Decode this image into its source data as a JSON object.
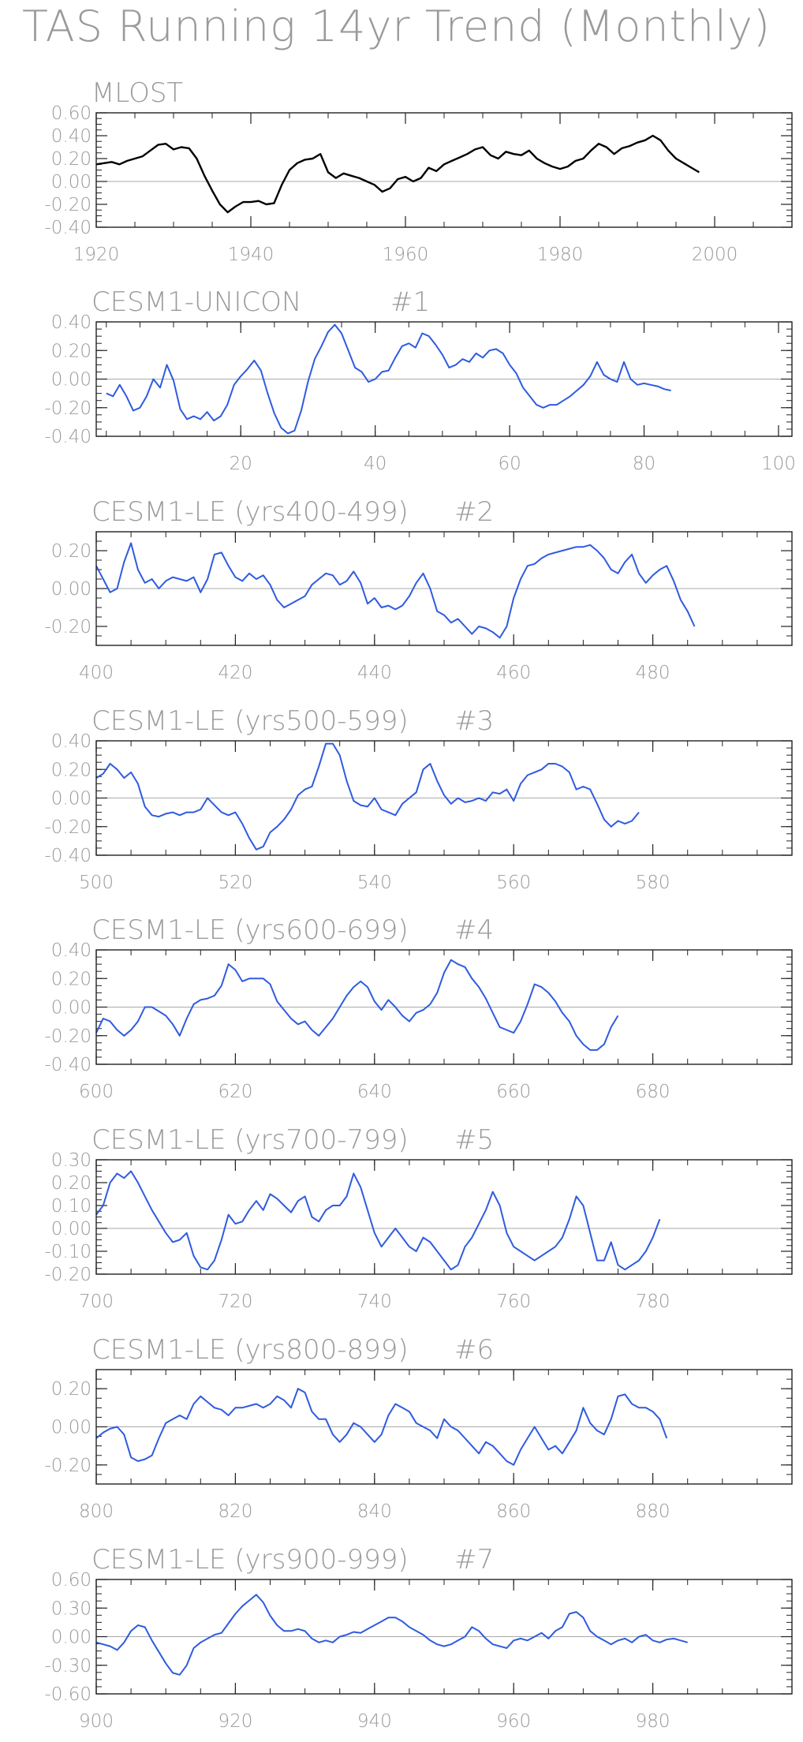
{
  "page": {
    "title": "TAS Running 14yr Trend (Monthly)"
  },
  "colors": {
    "observed_line": "#000000",
    "model_line": "#2f5be0",
    "frame": "#222222",
    "zero_line": "#aaaaaa",
    "text": "#9a9a9a"
  },
  "chart_data": [
    {
      "type": "line",
      "title": "MLOST",
      "label_run": "",
      "xlim": [
        1920,
        2010
      ],
      "ylim": [
        -0.4,
        0.6
      ],
      "yticks": [
        0.6,
        0.4,
        0.2,
        0.0,
        -0.2,
        -0.4
      ],
      "yticklabels": [
        "0.60",
        "0.40",
        "0.20",
        "0.00",
        "-0.20",
        "-0.40"
      ],
      "xticks": [
        1920,
        1940,
        1960,
        1980,
        2000
      ],
      "xticklabels": [
        "1920",
        "1940",
        "1960",
        "1980",
        "2000"
      ],
      "color": "observed",
      "series": [
        {
          "x0": 1920,
          "dx": 1,
          "values": [
            0.15,
            0.16,
            0.17,
            0.15,
            0.18,
            0.2,
            0.22,
            0.27,
            0.32,
            0.33,
            0.28,
            0.3,
            0.29,
            0.2,
            0.05,
            -0.08,
            -0.2,
            -0.27,
            -0.22,
            -0.18,
            -0.18,
            -0.17,
            -0.2,
            -0.19,
            -0.03,
            0.1,
            0.16,
            0.19,
            0.2,
            0.24,
            0.08,
            0.03,
            0.07,
            0.05,
            0.03,
            0.0,
            -0.03,
            -0.09,
            -0.06,
            0.02,
            0.04,
            0.0,
            0.03,
            0.12,
            0.09,
            0.15,
            0.18,
            0.21,
            0.24,
            0.28,
            0.3,
            0.23,
            0.2,
            0.26,
            0.24,
            0.23,
            0.27,
            0.2,
            0.16,
            0.13,
            0.11,
            0.13,
            0.18,
            0.2,
            0.27,
            0.33,
            0.3,
            0.24,
            0.29,
            0.31,
            0.34,
            0.36,
            0.4,
            0.36,
            0.27,
            0.2,
            0.16,
            0.12,
            0.08
          ]
        }
      ]
    },
    {
      "type": "line",
      "title": "CESM1-UNICON",
      "label_run": "#1",
      "xlim": [
        0,
        102
      ],
      "ylim": [
        -0.4,
        0.4
      ],
      "yticks": [
        0.4,
        0.2,
        0.0,
        -0.2,
        -0.4
      ],
      "yticklabels": [
        "0.40",
        "0.20",
        "0.00",
        "-0.20",
        "-0.40"
      ],
      "xticks": [
        20,
        40,
        60,
        80,
        100
      ],
      "xticklabels": [
        "20",
        "40",
        "60",
        "80",
        "100"
      ],
      "color": "model",
      "series": [
        {
          "x0": 0,
          "dx": 1,
          "values": [
            -0.1,
            -0.12,
            -0.04,
            -0.12,
            -0.22,
            -0.2,
            -0.12,
            0.0,
            -0.06,
            0.1,
            -0.01,
            -0.21,
            -0.28,
            -0.26,
            -0.28,
            -0.23,
            -0.29,
            -0.26,
            -0.18,
            -0.04,
            0.02,
            0.07,
            0.13,
            0.06,
            -0.1,
            -0.24,
            -0.34,
            -0.38,
            -0.36,
            -0.22,
            -0.02,
            0.14,
            0.23,
            0.33,
            0.38,
            0.32,
            0.2,
            0.08,
            0.05,
            -0.02,
            0.0,
            0.05,
            0.06,
            0.15,
            0.23,
            0.25,
            0.22,
            0.32,
            0.3,
            0.24,
            0.17,
            0.08,
            0.1,
            0.14,
            0.12,
            0.18,
            0.15,
            0.2,
            0.21,
            0.18,
            0.1,
            0.04,
            -0.06,
            -0.12,
            -0.18,
            -0.2,
            -0.18,
            -0.18,
            -0.15,
            -0.12,
            -0.08,
            -0.04,
            0.02,
            0.12,
            0.03,
            0.0,
            -0.02,
            0.12,
            0.0,
            -0.04,
            -0.03,
            -0.04,
            -0.05,
            -0.07,
            -0.08
          ]
        }
      ]
    },
    {
      "type": "line",
      "title": "CESM1-LE (yrs400-499)",
      "label_run": "#2",
      "xlim": [
        400,
        500
      ],
      "ylim": [
        -0.3,
        0.3
      ],
      "yticks": [
        0.2,
        0.0,
        -0.2
      ],
      "yticklabels": [
        "0.20",
        "0.00",
        "-0.20"
      ],
      "xticks": [
        400,
        420,
        440,
        460,
        480
      ],
      "xticklabels": [
        "400",
        "420",
        "440",
        "460",
        "480"
      ],
      "color": "model",
      "series": [
        {
          "x0": 400,
          "dx": 1,
          "values": [
            0.12,
            0.05,
            -0.02,
            0.0,
            0.14,
            0.24,
            0.1,
            0.03,
            0.05,
            0.0,
            0.04,
            0.06,
            0.05,
            0.04,
            0.06,
            -0.02,
            0.05,
            0.18,
            0.19,
            0.12,
            0.06,
            0.04,
            0.08,
            0.05,
            0.07,
            0.02,
            -0.06,
            -0.1,
            -0.08,
            -0.06,
            -0.04,
            0.02,
            0.05,
            0.08,
            0.07,
            0.02,
            0.04,
            0.09,
            0.03,
            -0.08,
            -0.05,
            -0.1,
            -0.09,
            -0.11,
            -0.09,
            -0.04,
            0.03,
            0.08,
            0.0,
            -0.12,
            -0.14,
            -0.18,
            -0.16,
            -0.2,
            -0.24,
            -0.2,
            -0.21,
            -0.23,
            -0.26,
            -0.2,
            -0.05,
            0.05,
            0.12,
            0.13,
            0.16,
            0.18,
            0.19,
            0.2,
            0.21,
            0.22,
            0.22,
            0.23,
            0.2,
            0.16,
            0.1,
            0.08,
            0.14,
            0.18,
            0.08,
            0.03,
            0.07,
            0.1,
            0.12,
            0.04,
            -0.06,
            -0.12,
            -0.2
          ]
        }
      ]
    },
    {
      "type": "line",
      "title": "CESM1-LE (yrs500-599)",
      "label_run": "#3",
      "xlim": [
        500,
        600
      ],
      "ylim": [
        -0.4,
        0.4
      ],
      "yticks": [
        0.4,
        0.2,
        0.0,
        -0.2,
        -0.4
      ],
      "yticklabels": [
        "0.40",
        "0.20",
        "0.00",
        "-0.20",
        "-0.40"
      ],
      "xticks": [
        500,
        520,
        540,
        560,
        580
      ],
      "xticklabels": [
        "500",
        "520",
        "540",
        "560",
        "580"
      ],
      "color": "model",
      "series": [
        {
          "x0": 500,
          "dx": 1,
          "values": [
            0.14,
            0.17,
            0.24,
            0.2,
            0.14,
            0.18,
            0.1,
            -0.06,
            -0.12,
            -0.13,
            -0.11,
            -0.1,
            -0.12,
            -0.1,
            -0.1,
            -0.08,
            0.0,
            -0.05,
            -0.1,
            -0.12,
            -0.1,
            -0.18,
            -0.28,
            -0.36,
            -0.34,
            -0.24,
            -0.2,
            -0.15,
            -0.08,
            0.02,
            0.06,
            0.08,
            0.22,
            0.38,
            0.38,
            0.3,
            0.12,
            -0.02,
            -0.05,
            -0.06,
            0.0,
            -0.08,
            -0.1,
            -0.12,
            -0.04,
            0.0,
            0.04,
            0.2,
            0.24,
            0.12,
            0.02,
            -0.04,
            0.0,
            -0.03,
            -0.02,
            0.0,
            -0.02,
            0.04,
            0.03,
            0.06,
            -0.02,
            0.1,
            0.16,
            0.18,
            0.2,
            0.24,
            0.24,
            0.22,
            0.18,
            0.06,
            0.08,
            0.06,
            -0.04,
            -0.15,
            -0.2,
            -0.16,
            -0.18,
            -0.16,
            -0.1
          ]
        }
      ]
    },
    {
      "type": "line",
      "title": "CESM1-LE (yrs600-699)",
      "label_run": "#4",
      "xlim": [
        600,
        700
      ],
      "ylim": [
        -0.4,
        0.4
      ],
      "yticks": [
        0.4,
        0.2,
        0.0,
        -0.2,
        -0.4
      ],
      "yticklabels": [
        "0.40",
        "0.20",
        "0.00",
        "-0.20",
        "-0.40"
      ],
      "xticks": [
        600,
        620,
        640,
        660,
        680
      ],
      "xticklabels": [
        "600",
        "620",
        "640",
        "660",
        "680"
      ],
      "color": "model",
      "series": [
        {
          "x0": 600,
          "dx": 1,
          "values": [
            -0.18,
            -0.08,
            -0.1,
            -0.16,
            -0.2,
            -0.16,
            -0.1,
            0.0,
            0.0,
            -0.03,
            -0.06,
            -0.12,
            -0.2,
            -0.08,
            0.02,
            0.05,
            0.06,
            0.08,
            0.15,
            0.3,
            0.26,
            0.18,
            0.2,
            0.2,
            0.2,
            0.16,
            0.04,
            -0.02,
            -0.08,
            -0.12,
            -0.1,
            -0.16,
            -0.2,
            -0.14,
            -0.08,
            0.0,
            0.08,
            0.14,
            0.18,
            0.14,
            0.04,
            -0.02,
            0.05,
            0.0,
            -0.06,
            -0.1,
            -0.04,
            -0.02,
            0.02,
            0.1,
            0.24,
            0.33,
            0.3,
            0.28,
            0.2,
            0.14,
            0.06,
            -0.04,
            -0.14,
            -0.16,
            -0.18,
            -0.1,
            0.02,
            0.16,
            0.14,
            0.1,
            0.04,
            -0.04,
            -0.1,
            -0.2,
            -0.26,
            -0.3,
            -0.3,
            -0.26,
            -0.14,
            -0.06
          ]
        }
      ]
    },
    {
      "type": "line",
      "title": "CESM1-LE (yrs700-799)",
      "label_run": "#5",
      "xlim": [
        700,
        800
      ],
      "ylim": [
        -0.2,
        0.3
      ],
      "yticks": [
        0.3,
        0.2,
        0.1,
        0.0,
        -0.1,
        -0.2
      ],
      "yticklabels": [
        "0.30",
        "0.20",
        "0.10",
        "0.00",
        "-0.10",
        "-0.20"
      ],
      "xticks": [
        700,
        720,
        740,
        760,
        780
      ],
      "xticklabels": [
        "700",
        "720",
        "740",
        "760",
        "780"
      ],
      "color": "model",
      "series": [
        {
          "x0": 700,
          "dx": 1,
          "values": [
            0.06,
            0.1,
            0.2,
            0.24,
            0.22,
            0.25,
            0.2,
            0.14,
            0.08,
            0.03,
            -0.02,
            -0.06,
            -0.05,
            -0.02,
            -0.12,
            -0.17,
            -0.18,
            -0.14,
            -0.05,
            0.06,
            0.02,
            0.03,
            0.08,
            0.12,
            0.08,
            0.15,
            0.13,
            0.1,
            0.07,
            0.12,
            0.14,
            0.05,
            0.03,
            0.08,
            0.1,
            0.1,
            0.14,
            0.24,
            0.18,
            0.08,
            -0.02,
            -0.08,
            -0.04,
            0.0,
            -0.04,
            -0.08,
            -0.1,
            -0.04,
            -0.06,
            -0.1,
            -0.14,
            -0.18,
            -0.16,
            -0.08,
            -0.04,
            0.02,
            0.08,
            0.16,
            0.1,
            -0.02,
            -0.08,
            -0.1,
            -0.12,
            -0.14,
            -0.12,
            -0.1,
            -0.08,
            -0.04,
            0.04,
            0.14,
            0.1,
            -0.02,
            -0.14,
            -0.14,
            -0.06,
            -0.16,
            -0.18,
            -0.16,
            -0.14,
            -0.1,
            -0.04,
            0.04
          ]
        }
      ]
    },
    {
      "type": "line",
      "title": "CESM1-LE (yrs800-899)",
      "label_run": "#6",
      "xlim": [
        800,
        900
      ],
      "ylim": [
        -0.3,
        0.3
      ],
      "yticks": [
        0.2,
        0.0,
        -0.2
      ],
      "yticklabels": [
        "0.20",
        "0.00",
        "-0.20"
      ],
      "xticks": [
        800,
        820,
        840,
        860,
        880
      ],
      "xticklabels": [
        "800",
        "820",
        "840",
        "860",
        "880"
      ],
      "color": "model",
      "series": [
        {
          "x0": 800,
          "dx": 1,
          "values": [
            -0.06,
            -0.03,
            -0.01,
            0.0,
            -0.04,
            -0.16,
            -0.18,
            -0.17,
            -0.15,
            -0.06,
            0.02,
            0.04,
            0.06,
            0.04,
            0.12,
            0.16,
            0.13,
            0.1,
            0.09,
            0.06,
            0.1,
            0.1,
            0.11,
            0.12,
            0.1,
            0.12,
            0.16,
            0.14,
            0.1,
            0.2,
            0.18,
            0.08,
            0.04,
            0.04,
            -0.04,
            -0.08,
            -0.04,
            0.02,
            0.0,
            -0.04,
            -0.08,
            -0.04,
            0.06,
            0.12,
            0.1,
            0.08,
            0.02,
            0.0,
            -0.02,
            -0.06,
            0.04,
            0.0,
            -0.02,
            -0.06,
            -0.1,
            -0.14,
            -0.08,
            -0.1,
            -0.14,
            -0.18,
            -0.2,
            -0.12,
            -0.06,
            0.0,
            -0.06,
            -0.12,
            -0.1,
            -0.14,
            -0.08,
            -0.02,
            0.1,
            0.02,
            -0.02,
            -0.04,
            0.04,
            0.16,
            0.17,
            0.12,
            0.1,
            0.1,
            0.08,
            0.04,
            -0.06
          ]
        }
      ]
    },
    {
      "type": "line",
      "title": "CESM1-LE (yrs900-999)",
      "label_run": "#7",
      "xlim": [
        900,
        1000
      ],
      "ylim": [
        -0.6,
        0.6
      ],
      "yticks": [
        0.6,
        0.3,
        0.0,
        -0.3,
        -0.6
      ],
      "yticklabels": [
        "0.60",
        "0.30",
        "0.00",
        "-0.30",
        "-0.60"
      ],
      "xticks": [
        900,
        920,
        940,
        960,
        980
      ],
      "xticklabels": [
        "900",
        "920",
        "940",
        "960",
        "980"
      ],
      "color": "model",
      "series": [
        {
          "x0": 900,
          "dx": 1,
          "values": [
            -0.06,
            -0.08,
            -0.1,
            -0.14,
            -0.06,
            0.06,
            0.12,
            0.1,
            -0.04,
            -0.16,
            -0.28,
            -0.38,
            -0.4,
            -0.3,
            -0.12,
            -0.06,
            -0.02,
            0.02,
            0.04,
            0.14,
            0.24,
            0.32,
            0.38,
            0.44,
            0.36,
            0.22,
            0.12,
            0.06,
            0.06,
            0.08,
            0.06,
            -0.02,
            -0.06,
            -0.04,
            -0.06,
            0.0,
            0.02,
            0.05,
            0.04,
            0.08,
            0.12,
            0.16,
            0.2,
            0.2,
            0.16,
            0.1,
            0.06,
            0.02,
            -0.04,
            -0.08,
            -0.1,
            -0.08,
            -0.04,
            0.0,
            0.1,
            0.06,
            -0.02,
            -0.08,
            -0.1,
            -0.12,
            -0.04,
            -0.02,
            -0.04,
            0.0,
            0.04,
            -0.02,
            0.06,
            0.1,
            0.24,
            0.26,
            0.2,
            0.06,
            0.0,
            -0.04,
            -0.08,
            -0.04,
            -0.02,
            -0.06,
            0.0,
            0.02,
            -0.04,
            -0.06,
            -0.03,
            -0.02,
            -0.04,
            -0.06
          ]
        }
      ]
    }
  ]
}
